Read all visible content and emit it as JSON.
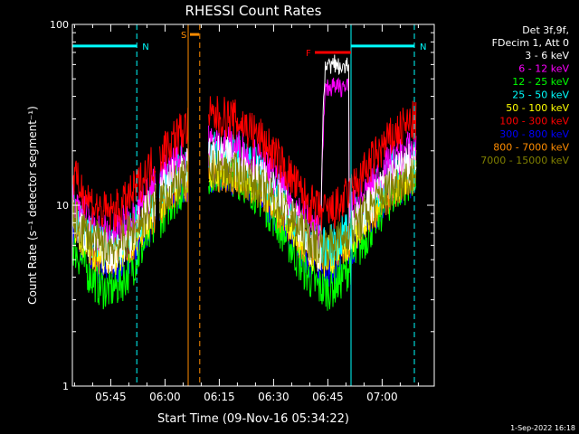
{
  "chart_data": {
    "type": "line",
    "title": "RHESSI Count Rates",
    "xlabel": "Start Time (09-Nov-16 05:34:22)",
    "ylabel": "Count Rate (s⁻¹ detector segment⁻¹)",
    "yscale": "log",
    "ylim": [
      1,
      100
    ],
    "xlim_minutes": [
      0,
      100
    ],
    "yticks": [
      {
        "value": 1,
        "label": "1"
      },
      {
        "value": 10,
        "label": "10"
      },
      {
        "value": 100,
        "label": "100"
      }
    ],
    "xticks": [
      {
        "minute": 10.6,
        "label": "05:45"
      },
      {
        "minute": 25.6,
        "label": "06:00"
      },
      {
        "minute": 40.6,
        "label": "06:15"
      },
      {
        "minute": 55.6,
        "label": "06:30"
      },
      {
        "minute": 70.6,
        "label": "06:45"
      },
      {
        "minute": 85.6,
        "label": "07:00"
      }
    ],
    "legend_header": [
      "Det 3f,9f,",
      "FDecim 1, Att 0"
    ],
    "series": [
      {
        "name": "3 - 6 keV",
        "color": "#ffffff",
        "base": 12.0,
        "amp": 0.45,
        "flare": 60
      },
      {
        "name": "6 - 12 keV",
        "color": "#ff00ff",
        "base": 14.5,
        "amp": 0.42,
        "flare": 45
      },
      {
        "name": "12 - 25 keV",
        "color": "#00ff00",
        "base": 9.0,
        "amp": 0.55,
        "flare": 0
      },
      {
        "name": "25 - 50 keV",
        "color": "#00ffff",
        "base": 13.0,
        "amp": 0.45,
        "flare": 0
      },
      {
        "name": "50 - 100 keV",
        "color": "#ffff00",
        "base": 11.0,
        "amp": 0.42,
        "flare": 0
      },
      {
        "name": "100 - 300 keV",
        "color": "#ff0000",
        "base": 20.0,
        "amp": 0.45,
        "flare": 0
      },
      {
        "name": "300 - 800 keV",
        "color": "#0000ff",
        "base": 10.0,
        "amp": 0.45,
        "flare": 0
      },
      {
        "name": "800 - 7000 keV",
        "color": "#ff8c00",
        "base": 10.5,
        "amp": 0.4,
        "flare": 0
      },
      {
        "name": "7000 - 15000 keV",
        "color": "#808000",
        "base": 11.0,
        "amp": 0.35,
        "flare": 0
      }
    ],
    "annotations": [
      {
        "label": "N",
        "color": "#00ffff",
        "bar_start_minute": 0,
        "bar_end_minute": 17.8,
        "bar_value": 76,
        "line_minute": 17.8
      },
      {
        "label": "N",
        "color": "#00ffff",
        "bar_start_minute": 77.0,
        "bar_end_minute": 94.5,
        "bar_value": 76,
        "line_minute": 77.0,
        "line_minute_2": 94.5
      },
      {
        "label": "S",
        "color": "#ff8c00",
        "bar_start_minute": 32.5,
        "bar_end_minute": 35.0,
        "bar_value": 88,
        "line_minute": 32.0,
        "line_minute_2": 35.2
      },
      {
        "label": "F",
        "color": "#ff0000",
        "bar_start_minute": 67.0,
        "bar_end_minute": 77.0,
        "bar_value": 70
      }
    ],
    "gaps_minutes": [
      [
        23.0,
        24.0
      ],
      [
        32.0,
        37.5
      ]
    ],
    "footer": "1-Sep-2022 16:18"
  }
}
